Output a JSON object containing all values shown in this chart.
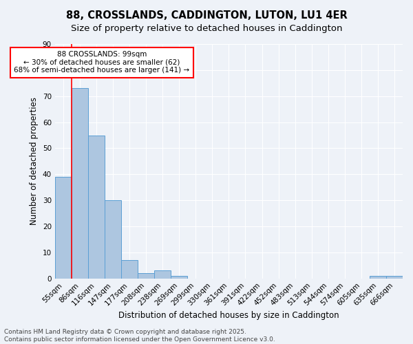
{
  "title1": "88, CROSSLANDS, CADDINGTON, LUTON, LU1 4ER",
  "title2": "Size of property relative to detached houses in Caddington",
  "xlabel": "Distribution of detached houses by size in Caddington",
  "ylabel": "Number of detached properties",
  "categories": [
    "55sqm",
    "86sqm",
    "116sqm",
    "147sqm",
    "177sqm",
    "208sqm",
    "238sqm",
    "269sqm",
    "299sqm",
    "330sqm",
    "361sqm",
    "391sqm",
    "422sqm",
    "452sqm",
    "483sqm",
    "513sqm",
    "544sqm",
    "574sqm",
    "605sqm",
    "635sqm",
    "666sqm"
  ],
  "values": [
    39,
    73,
    55,
    30,
    7,
    2,
    3,
    1,
    0,
    0,
    0,
    0,
    0,
    0,
    0,
    0,
    0,
    0,
    0,
    1,
    1
  ],
  "bar_color": "#adc6e0",
  "bar_edge_color": "#5a9fd4",
  "red_line_index": 1,
  "annotation_text": "88 CROSSLANDS: 99sqm\n← 30% of detached houses are smaller (62)\n68% of semi-detached houses are larger (141) →",
  "annotation_box_color": "white",
  "annotation_box_edgecolor": "red",
  "ylim": [
    0,
    90
  ],
  "yticks": [
    0,
    10,
    20,
    30,
    40,
    50,
    60,
    70,
    80,
    90
  ],
  "footer_text": "Contains HM Land Registry data © Crown copyright and database right 2025.\nContains public sector information licensed under the Open Government Licence v3.0.",
  "background_color": "#eef2f8",
  "grid_color": "#ffffff",
  "title_fontsize": 10.5,
  "subtitle_fontsize": 9.5,
  "axis_label_fontsize": 8.5,
  "tick_fontsize": 7.5,
  "annotation_fontsize": 7.5,
  "footer_fontsize": 6.5
}
